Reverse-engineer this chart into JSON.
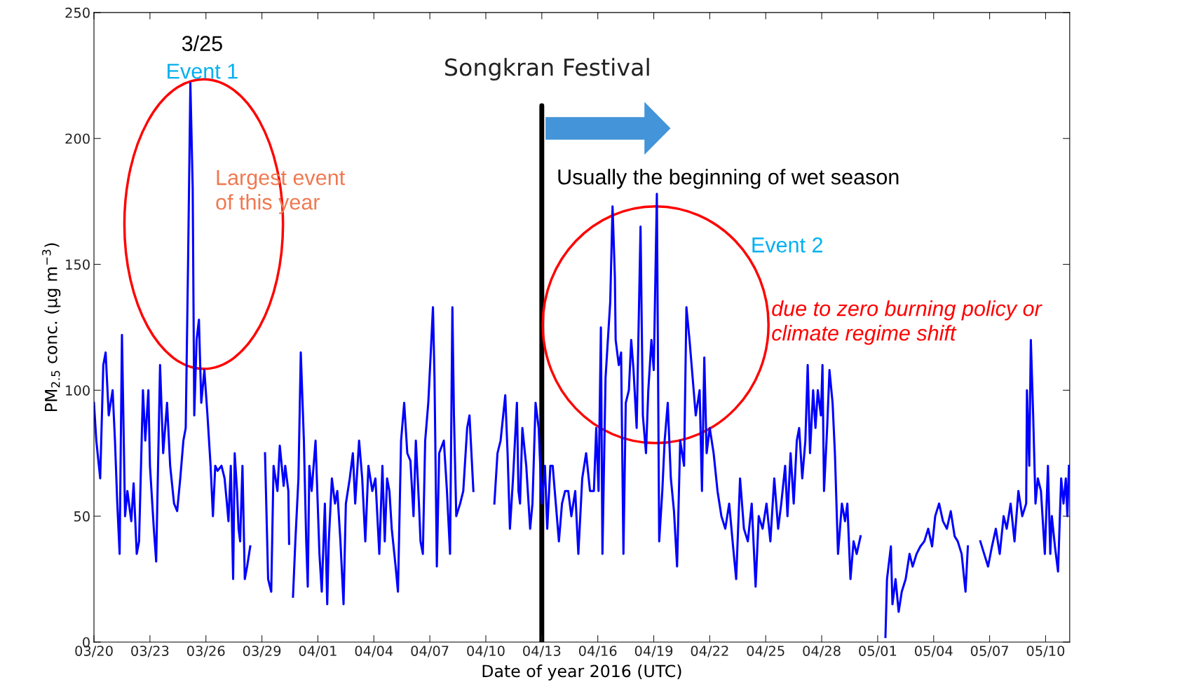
{
  "chart_data": {
    "type": "line",
    "xlabel": "Date of year 2016 (UTC)",
    "ylabel": "PM$_{2.5}$ conc. (μg m$^{−3}$)",
    "annotations": [
      "3/25",
      "Event 1",
      "Largest event\nof this year",
      {
        "text": "Usually the beginning of wet season",
        "x": "2016-04-13",
        "y": 204
      },
      "Event 2",
      "due to zero burning policy or\nclimate regime shift"
    ],
    "ref_lines": [
      {
        "axis": "x",
        "value": "2016-04-13",
        "label": "Songkran Festival",
        "color": "#000000",
        "line_style": "solid"
      }
    ],
    "xlim": [
      "2016-03-20T00:00",
      "2016-05-11T07:00"
    ],
    "ylim": [
      0,
      250
    ],
    "yticks": [
      0,
      50,
      100,
      150,
      200,
      250
    ],
    "xticks": [
      {
        "value": "2016-03-20",
        "label": "03/20"
      },
      {
        "value": "2016-03-23",
        "label": "03/23"
      },
      {
        "value": "2016-03-26",
        "label": "03/26"
      },
      {
        "value": "2016-03-29",
        "label": "03/29"
      },
      {
        "value": "2016-04-01",
        "label": "04/01"
      },
      {
        "value": "2016-04-04",
        "label": "04/04"
      },
      {
        "value": "2016-04-07",
        "label": "04/07"
      },
      {
        "value": "2016-04-10",
        "label": "04/10"
      },
      {
        "value": "2016-04-13",
        "label": "04/13"
      },
      {
        "value": "2016-04-16",
        "label": "04/16"
      },
      {
        "value": "2016-04-19",
        "label": "04/19"
      },
      {
        "value": "2016-04-22",
        "label": "04/22"
      },
      {
        "value": "2016-04-25",
        "label": "04/25"
      },
      {
        "value": "2016-04-28",
        "label": "04/28"
      },
      {
        "value": "2016-05-01",
        "label": "05/01"
      },
      {
        "value": "2016-05-04",
        "label": "05/04"
      },
      {
        "value": "2016-05-07",
        "label": "05/07"
      },
      {
        "value": "2016-05-10",
        "label": "05/10"
      }
    ],
    "grid": false,
    "legend": false,
    "marker": "none",
    "line_style": "solid",
    "series": [
      {
        "color": "#0000ff",
        "x": [
          "2016-03-20T00:00",
          "2016-03-20T03:00",
          "2016-03-20T08:00",
          "2016-03-20T12:00",
          "2016-03-20T15:00",
          "2016-03-20T19:00",
          "2016-03-21T00:00",
          "2016-03-21T03:00",
          "2016-03-21T06:00",
          "2016-03-21T09:00",
          "2016-03-21T12:00",
          "2016-03-21T16:00",
          "2016-03-21T19:00",
          "2016-03-22T00:00",
          "2016-03-22T03:00",
          "2016-03-22T07:00",
          "2016-03-22T10:00",
          "2016-03-22T15:00",
          "2016-03-22T18:00",
          "2016-03-22T22:00",
          "2016-03-23T00:00",
          "2016-03-23T05:00",
          "2016-03-23T08:00",
          "2016-03-23T13:00",
          "2016-03-23T17:00",
          "2016-03-23T22:00",
          "2016-03-24T02:00",
          "2016-03-24T07:00",
          "2016-03-24T11:00",
          "2016-03-24T15:00",
          "2016-03-24T19:00",
          "2016-03-24T22:00",
          "2016-03-25T01:00",
          "2016-03-25T04:00",
          "2016-03-25T07:00",
          "2016-03-25T09:00",
          "2016-03-25T12:00",
          "2016-03-25T15:00",
          "2016-03-25T18:00",
          "2016-03-25T22:00",
          "2016-03-26T02:00",
          "2016-03-26T06:00",
          "2016-03-26T09:00",
          "2016-03-26T12:00",
          "2016-03-26T15:00",
          "2016-03-26T20:00",
          "2016-03-27T00:00",
          "2016-03-27T03:00",
          "2016-03-27T05:00",
          "2016-03-27T08:00",
          "2016-03-27T11:00",
          "2016-03-27T13:00",
          "2016-03-27T16:00",
          "2016-03-27T18:00",
          "2016-03-27T20:00",
          "2016-03-27T23:00",
          "2016-03-28T02:00",
          "2016-03-28T05:00",
          "2016-03-28T09:00",
          "2016-03-28T19:00",
          "2016-03-29T04:00",
          "2016-03-29T08:00",
          "2016-03-29T12:00",
          "2016-03-29T15:00",
          "2016-03-29T20:00",
          "2016-03-29T23:00",
          "2016-03-30T04:00",
          "2016-03-30T06:00",
          "2016-03-30T10:00",
          "2016-03-30T11:00",
          "2016-03-30T13:00",
          "2016-03-30T16:00",
          "2016-03-30T19:00",
          "2016-03-30T23:00",
          "2016-03-31T02:00",
          "2016-03-31T06:00",
          "2016-03-31T09:00",
          "2016-03-31T11:00",
          "2016-03-31T13:00",
          "2016-03-31T16:00",
          "2016-03-31T21:00",
          "2016-04-01T02:00",
          "2016-04-01T05:00",
          "2016-04-01T09:00",
          "2016-04-01T12:00",
          "2016-04-01T14:00",
          "2016-04-01T18:00",
          "2016-04-01T22:00",
          "2016-04-02T01:00",
          "2016-04-02T05:00",
          "2016-04-02T09:00",
          "2016-04-02T12:00",
          "2016-04-02T17:00",
          "2016-04-02T21:00",
          "2016-04-03T00:00",
          "2016-04-03T05:00",
          "2016-04-03T09:00",
          "2016-04-03T13:00",
          "2016-04-03T17:00",
          "2016-04-03T22:00",
          "2016-04-04T02:00",
          "2016-04-04T07:00",
          "2016-04-04T11:00",
          "2016-04-04T14:00",
          "2016-04-04T17:00",
          "2016-04-04T20:00",
          "2016-04-04T23:00",
          "2016-04-05T04:00",
          "2016-04-05T07:00",
          "2016-04-05T11:00",
          "2016-04-05T15:00",
          "2016-04-05T19:00",
          "2016-04-05T23:00",
          "2016-04-06T03:00",
          "2016-04-06T06:00",
          "2016-04-06T10:00",
          "2016-04-06T12:00",
          "2016-04-06T15:00",
          "2016-04-06T18:00",
          "2016-04-06T22:00",
          "2016-04-07T02:00",
          "2016-04-07T04:00",
          "2016-04-07T06:00",
          "2016-04-07T09:00",
          "2016-04-07T12:00",
          "2016-04-07T18:00",
          "2016-04-07T22:00",
          "2016-04-08T02:00",
          "2016-04-08T05:00",
          "2016-04-08T07:00",
          "2016-04-08T10:00",
          "2016-04-08T15:00",
          "2016-04-08T19:00",
          "2016-04-09T00:00",
          "2016-04-09T03:00",
          "2016-04-09T08:00",
          "2016-04-09T19:00",
          "2016-04-10T11:00",
          "2016-04-10T15:00",
          "2016-04-10T19:00",
          "2016-04-11T01:00",
          "2016-04-11T04:00",
          "2016-04-11T07:00",
          "2016-04-11T11:00",
          "2016-04-11T16:00",
          "2016-04-11T18:00",
          "2016-04-11T20:00",
          "2016-04-11T23:00",
          "2016-04-12T04:00",
          "2016-04-12T09:00",
          "2016-04-12T12:00",
          "2016-04-12T16:00",
          "2016-04-12T20:00",
          "2016-04-13T00:00",
          "2016-04-13T04:00",
          "2016-04-13T07:00",
          "2016-04-13T11:00",
          "2016-04-13T14:00",
          "2016-04-13T18:00",
          "2016-04-13T22:00",
          "2016-04-14T02:00",
          "2016-04-14T06:00",
          "2016-04-14T10:00",
          "2016-04-14T14:00",
          "2016-04-14T19:00",
          "2016-04-14T23:00",
          "2016-04-15T04:00",
          "2016-04-15T09:00",
          "2016-04-15T14:00",
          "2016-04-15T19:00",
          "2016-04-15T22:00",
          "2016-04-16T01:00",
          "2016-04-16T04:00",
          "2016-04-16T06:00",
          "2016-04-16T10:00",
          "2016-04-16T16:00",
          "2016-04-16T19:00",
          "2016-04-16T22:00",
          "2016-04-16T23:00",
          "2016-04-17T03:00",
          "2016-04-17T06:00",
          "2016-04-17T09:00",
          "2016-04-17T12:00",
          "2016-04-17T16:00",
          "2016-04-17T19:00",
          "2016-04-17T22:00",
          "2016-04-18T02:00",
          "2016-04-18T07:00",
          "2016-04-18T10:00",
          "2016-04-18T14:00",
          "2016-04-18T17:00",
          "2016-04-18T21:00",
          "2016-04-19T00:00",
          "2016-04-19T04:00",
          "2016-04-19T07:00",
          "2016-04-19T11:00",
          "2016-04-19T14:00",
          "2016-04-19T18:00",
          "2016-04-19T22:00",
          "2016-04-20T02:00",
          "2016-04-20T06:00",
          "2016-04-20T10:00",
          "2016-04-20T15:00",
          "2016-04-20T18:00",
          "2016-04-20T22:00",
          "2016-04-21T02:00",
          "2016-04-21T06:00",
          "2016-04-21T11:00",
          "2016-04-21T14:00",
          "2016-04-21T17:00",
          "2016-04-21T20:00",
          "2016-04-22T00:00",
          "2016-04-22T05:00",
          "2016-04-22T10:00",
          "2016-04-22T15:00",
          "2016-04-22T20:00",
          "2016-04-23T01:00",
          "2016-04-23T06:00",
          "2016-04-23T10:00",
          "2016-04-23T15:00",
          "2016-04-23T20:00",
          "2016-04-24T01:00",
          "2016-04-24T06:00",
          "2016-04-24T11:00",
          "2016-04-24T15:00",
          "2016-04-24T20:00",
          "2016-04-25T01:00",
          "2016-04-25T06:00",
          "2016-04-25T11:00",
          "2016-04-25T16:00",
          "2016-04-25T20:00",
          "2016-04-26T01:00",
          "2016-04-26T04:00",
          "2016-04-26T08:00",
          "2016-04-26T12:00",
          "2016-04-26T16:00",
          "2016-04-26T19:00",
          "2016-04-26T23:00",
          "2016-04-27T03:00",
          "2016-04-27T06:00",
          "2016-04-27T09:00",
          "2016-04-27T13:00",
          "2016-04-27T16:00",
          "2016-04-27T19:00",
          "2016-04-27T23:00",
          "2016-04-28T01:00",
          "2016-04-28T03:00",
          "2016-04-28T07:00",
          "2016-04-28T10:00",
          "2016-04-28T14:00",
          "2016-04-28T17:00",
          "2016-04-28T21:00",
          "2016-04-29T02:00",
          "2016-04-29T06:00",
          "2016-04-29T09:00",
          "2016-04-29T13:00",
          "2016-04-29T17:00",
          "2016-04-29T21:00",
          "2016-04-30T02:00",
          "2016-04-30T14:00",
          "2016-05-01T10:00",
          "2016-05-01T12:00",
          "2016-05-01T17:00",
          "2016-05-01T19:00",
          "2016-05-01T23:00",
          "2016-05-02T03:00",
          "2016-05-02T07:00",
          "2016-05-02T12:00",
          "2016-05-02T17:00",
          "2016-05-02T21:00",
          "2016-05-03T02:00",
          "2016-05-03T07:00",
          "2016-05-03T12:00",
          "2016-05-03T17:00",
          "2016-05-03T22:00",
          "2016-05-04T02:00",
          "2016-05-04T07:00",
          "2016-05-04T12:00",
          "2016-05-04T17:00",
          "2016-05-04T22:00",
          "2016-05-05T03:00",
          "2016-05-05T07:00",
          "2016-05-05T12:00",
          "2016-05-05T17:00",
          "2016-05-05T20:00",
          "2016-05-06T05:00",
          "2016-05-06T12:00",
          "2016-05-06T17:00",
          "2016-05-06T22:00",
          "2016-05-07T03:00",
          "2016-05-07T08:00",
          "2016-05-07T13:00",
          "2016-05-07T18:00",
          "2016-05-07T22:00",
          "2016-05-08T03:00",
          "2016-05-08T08:00",
          "2016-05-08T13:00",
          "2016-05-08T18:00",
          "2016-05-08T23:00",
          "2016-05-09T00:00",
          "2016-05-09T03:00",
          "2016-05-09T05:00",
          "2016-05-09T08:00",
          "2016-05-09T11:00",
          "2016-05-09T14:00",
          "2016-05-09T18:00",
          "2016-05-09T21:00",
          "2016-05-09T23:00",
          "2016-05-10T03:00",
          "2016-05-10T06:00",
          "2016-05-10T08:00",
          "2016-05-10T12:00",
          "2016-05-10T16:00",
          "2016-05-10T20:00",
          "2016-05-10T23:00",
          "2016-05-11T02:00",
          "2016-05-11T04:00",
          "2016-05-11T06:00"
        ],
        "values": [
          95,
          80,
          65,
          110,
          115,
          90,
          100,
          80,
          55,
          35,
          122,
          50,
          60,
          48,
          63,
          35,
          40,
          100,
          80,
          100,
          70,
          45,
          32,
          110,
          75,
          95,
          70,
          55,
          52,
          65,
          80,
          85,
          150,
          222,
          180,
          90,
          120,
          128,
          95,
          108,
          90,
          70,
          50,
          70,
          68,
          70,
          65,
          55,
          48,
          70,
          25,
          75,
          60,
          45,
          40,
          70,
          25,
          30,
          38,
          null,
          75,
          25,
          20,
          70,
          60,
          78,
          62,
          70,
          60,
          39,
          null,
          18,
          40,
          65,
          115,
          80,
          40,
          22,
          70,
          60,
          80,
          35,
          20,
          55,
          15,
          40,
          65,
          55,
          60,
          40,
          15,
          55,
          65,
          75,
          55,
          80,
          65,
          40,
          70,
          60,
          65,
          35,
          70,
          40,
          65,
          60,
          45,
          30,
          20,
          80,
          95,
          75,
          72,
          50,
          80,
          55,
          40,
          35,
          80,
          95,
          120,
          133,
          105,
          30,
          75,
          80,
          60,
          35,
          133,
          90,
          50,
          55,
          60,
          85,
          90,
          60,
          null,
          55,
          75,
          80,
          98,
          75,
          45,
          65,
          95,
          60,
          55,
          85,
          70,
          45,
          55,
          95,
          85,
          55,
          70,
          45,
          70,
          70,
          55,
          40,
          55,
          60,
          60,
          50,
          60,
          35,
          65,
          75,
          60,
          60,
          85,
          60,
          125,
          35,
          105,
          135,
          173,
          145,
          120,
          110,
          115,
          35,
          95,
          100,
          120,
          108,
          85,
          165,
          90,
          75,
          100,
          120,
          108,
          178,
          40,
          60,
          80,
          95,
          65,
          52,
          30,
          80,
          70,
          133,
          120,
          105,
          90,
          100,
          60,
          113,
          75,
          85,
          75,
          60,
          50,
          45,
          55,
          38,
          25,
          65,
          45,
          40,
          55,
          22,
          50,
          45,
          55,
          40,
          65,
          45,
          55,
          70,
          50,
          75,
          55,
          80,
          85,
          65,
          80,
          110,
          75,
          100,
          85,
          100,
          90,
          110,
          60,
          85,
          108,
          95,
          75,
          35,
          55,
          48,
          55,
          25,
          40,
          35,
          42,
          null,
          2,
          25,
          38,
          15,
          25,
          12,
          20,
          25,
          35,
          30,
          35,
          38,
          40,
          45,
          38,
          50,
          55,
          48,
          45,
          52,
          42,
          40,
          35,
          20,
          38,
          null,
          40,
          35,
          30,
          38,
          45,
          35,
          50,
          45,
          55,
          40,
          60,
          50,
          55,
          100,
          70,
          120,
          90,
          55,
          65,
          60,
          45,
          35,
          70,
          35,
          50,
          38,
          28,
          65,
          55,
          65,
          50,
          70
        ]
      }
    ]
  }
}
